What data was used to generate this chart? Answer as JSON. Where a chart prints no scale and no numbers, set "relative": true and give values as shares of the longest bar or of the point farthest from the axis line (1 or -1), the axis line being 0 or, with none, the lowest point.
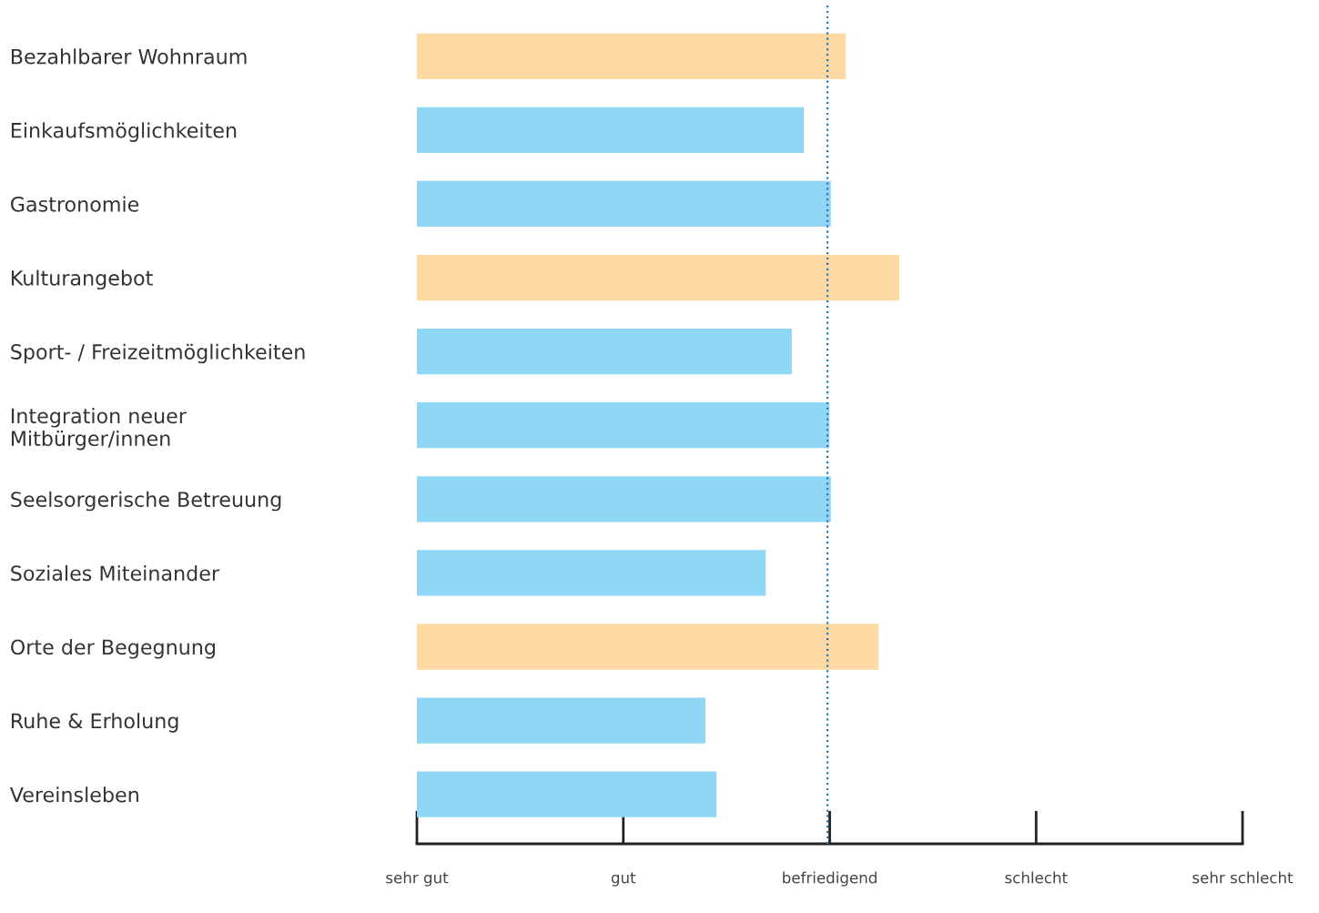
{
  "chart_data": {
    "type": "bar",
    "orientation": "horizontal",
    "relative": true,
    "categories": [
      "Bezahlbarer Wohnraum",
      "Einkaufsmöglichkeiten",
      "Gastronomie",
      "Kulturangebot",
      "Sport- / Freizeitmöglichkeiten",
      "Integration neuer\nMitbürger/innen",
      "Seelsorgerische Betreuung",
      "Soziales Miteinander",
      "Orte der Begegnung",
      "Ruhe & Erholung",
      "Vereinsleben"
    ],
    "values": [
      0.889,
      0.802,
      0.858,
      1,
      0.777,
      0.855,
      0.858,
      0.723,
      0.957,
      0.598,
      0.621
    ],
    "colors": [
      "#fdd9a3",
      "#8fd7f4",
      "#8fd7f4",
      "#fdd9a3",
      "#8fd7f4",
      "#8fd7f4",
      "#8fd7f4",
      "#8fd7f4",
      "#fdd9a3",
      "#8fd7f4",
      "#8fd7f4"
    ],
    "annotations": [
      "sehr gut",
      "gut",
      "befriedigend",
      "schlecht",
      "sehr schlecht"
    ],
    "ref_lines": [
      {
        "axis": "x",
        "value": 0.851,
        "color": "#1f7bc0",
        "line_style": "dotted"
      }
    ],
    "grid": false
  }
}
